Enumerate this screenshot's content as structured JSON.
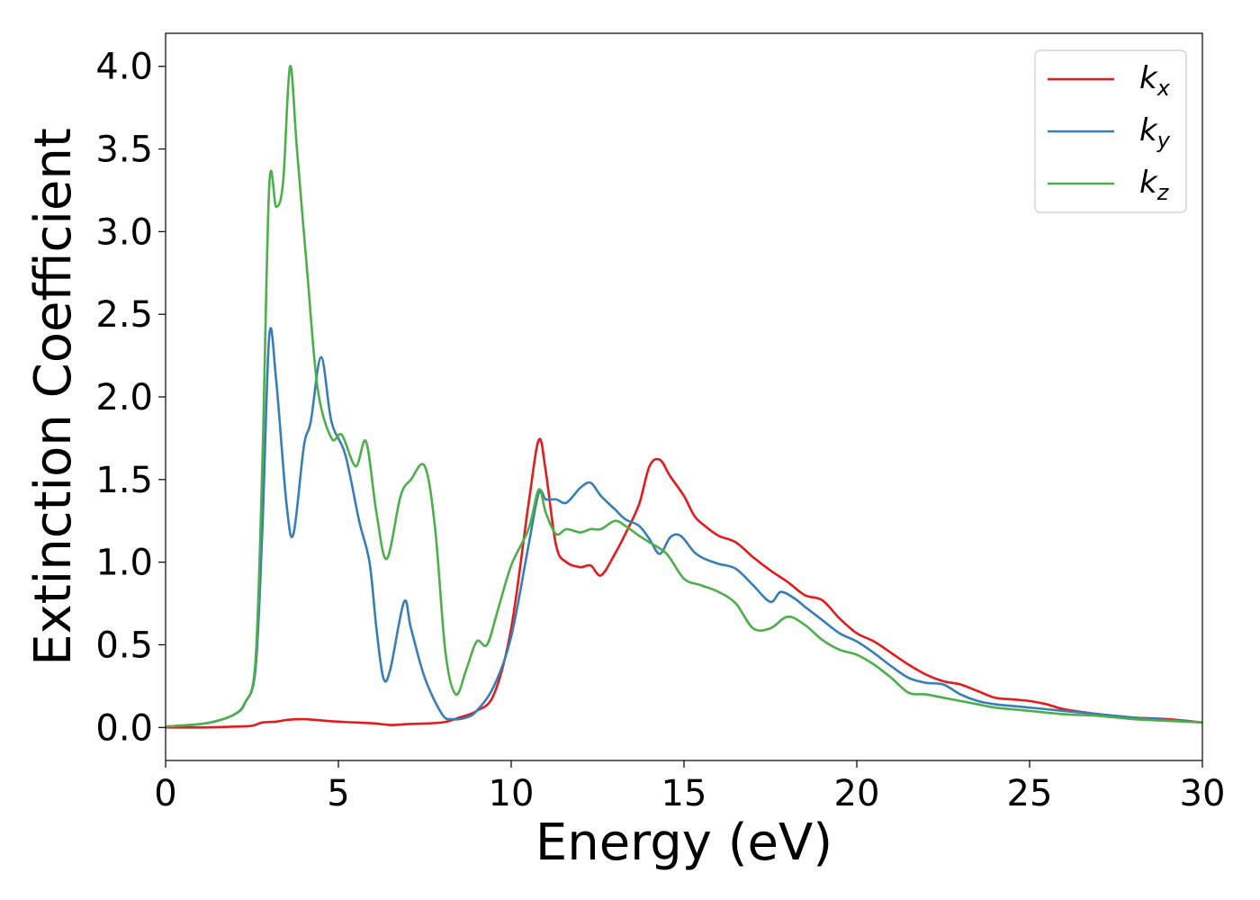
{
  "chart_data": {
    "type": "line",
    "xlabel": "Energy (eV)",
    "ylabel": "Extinction Coefficient",
    "xlim": [
      0,
      30
    ],
    "ylim": [
      -0.2,
      4.2
    ],
    "xticks": [
      0,
      5,
      10,
      15,
      20,
      25,
      30
    ],
    "yticks": [
      0.0,
      0.5,
      1.0,
      1.5,
      2.0,
      2.5,
      3.0,
      3.5,
      4.0
    ],
    "xtick_labels": [
      "0",
      "5",
      "10",
      "15",
      "20",
      "25",
      "30"
    ],
    "ytick_labels": [
      "0.0",
      "0.5",
      "1.0",
      "1.5",
      "2.0",
      "2.5",
      "3.0",
      "3.5",
      "4.0"
    ],
    "grid": false,
    "legend_position": "top-right",
    "series": [
      {
        "name": "k_x",
        "label_main": "k",
        "label_sub": "x",
        "color": "#e41a1c",
        "points": [
          [
            0,
            0
          ],
          [
            1,
            0
          ],
          [
            2,
            0.005
          ],
          [
            2.5,
            0.01
          ],
          [
            2.8,
            0.03
          ],
          [
            3.2,
            0.035
          ],
          [
            3.5,
            0.045
          ],
          [
            4,
            0.05
          ],
          [
            5,
            0.035
          ],
          [
            6,
            0.025
          ],
          [
            6.5,
            0.015
          ],
          [
            7,
            0.02
          ],
          [
            8,
            0.03
          ],
          [
            8.5,
            0.06
          ],
          [
            9,
            0.1
          ],
          [
            9.5,
            0.2
          ],
          [
            10,
            0.6
          ],
          [
            10.5,
            1.35
          ],
          [
            10.8,
            1.74
          ],
          [
            11,
            1.55
          ],
          [
            11.3,
            1.1
          ],
          [
            11.6,
            1.0
          ],
          [
            12,
            0.97
          ],
          [
            12.3,
            0.98
          ],
          [
            12.6,
            0.92
          ],
          [
            13,
            1.05
          ],
          [
            13.3,
            1.17
          ],
          [
            13.7,
            1.35
          ],
          [
            14,
            1.58
          ],
          [
            14.3,
            1.62
          ],
          [
            14.6,
            1.52
          ],
          [
            15,
            1.4
          ],
          [
            15.3,
            1.28
          ],
          [
            15.6,
            1.22
          ],
          [
            16,
            1.16
          ],
          [
            16.5,
            1.12
          ],
          [
            17,
            1.03
          ],
          [
            17.5,
            0.95
          ],
          [
            18,
            0.88
          ],
          [
            18.5,
            0.8
          ],
          [
            19,
            0.77
          ],
          [
            19.5,
            0.66
          ],
          [
            20,
            0.57
          ],
          [
            20.5,
            0.52
          ],
          [
            21,
            0.45
          ],
          [
            21.5,
            0.38
          ],
          [
            22,
            0.32
          ],
          [
            22.5,
            0.28
          ],
          [
            23,
            0.26
          ],
          [
            23.5,
            0.22
          ],
          [
            24,
            0.18
          ],
          [
            24.5,
            0.17
          ],
          [
            25,
            0.16
          ],
          [
            25.5,
            0.14
          ],
          [
            26,
            0.11
          ],
          [
            27,
            0.08
          ],
          [
            28,
            0.06
          ],
          [
            29,
            0.05
          ],
          [
            30,
            0.03
          ]
        ]
      },
      {
        "name": "k_y",
        "label_main": "k",
        "label_sub": "y",
        "color": "#377eb8",
        "points": [
          [
            0,
            0.005
          ],
          [
            1,
            0.02
          ],
          [
            1.5,
            0.04
          ],
          [
            2,
            0.08
          ],
          [
            2.3,
            0.15
          ],
          [
            2.6,
            0.35
          ],
          [
            2.8,
            1.2
          ],
          [
            3,
            2.37
          ],
          [
            3.2,
            2.1
          ],
          [
            3.5,
            1.35
          ],
          [
            3.7,
            1.17
          ],
          [
            4,
            1.7
          ],
          [
            4.2,
            1.85
          ],
          [
            4.5,
            2.24
          ],
          [
            4.8,
            1.85
          ],
          [
            5.2,
            1.65
          ],
          [
            5.6,
            1.25
          ],
          [
            5.9,
            1.0
          ],
          [
            6.1,
            0.6
          ],
          [
            6.3,
            0.3
          ],
          [
            6.5,
            0.35
          ],
          [
            6.9,
            0.76
          ],
          [
            7.1,
            0.6
          ],
          [
            7.5,
            0.3
          ],
          [
            8,
            0.08
          ],
          [
            8.3,
            0.05
          ],
          [
            8.7,
            0.06
          ],
          [
            9,
            0.1
          ],
          [
            9.5,
            0.25
          ],
          [
            10,
            0.55
          ],
          [
            10.5,
            1.1
          ],
          [
            10.8,
            1.42
          ],
          [
            11,
            1.38
          ],
          [
            11.3,
            1.38
          ],
          [
            11.6,
            1.36
          ],
          [
            12,
            1.45
          ],
          [
            12.3,
            1.48
          ],
          [
            12.6,
            1.4
          ],
          [
            13,
            1.32
          ],
          [
            13.3,
            1.26
          ],
          [
            13.7,
            1.22
          ],
          [
            14,
            1.14
          ],
          [
            14.3,
            1.05
          ],
          [
            14.6,
            1.15
          ],
          [
            14.9,
            1.16
          ],
          [
            15.3,
            1.06
          ],
          [
            15.6,
            1.02
          ],
          [
            16,
            0.99
          ],
          [
            16.5,
            0.96
          ],
          [
            17,
            0.86
          ],
          [
            17.5,
            0.76
          ],
          [
            17.8,
            0.82
          ],
          [
            18.2,
            0.78
          ],
          [
            18.5,
            0.73
          ],
          [
            19,
            0.65
          ],
          [
            19.5,
            0.57
          ],
          [
            20,
            0.52
          ],
          [
            20.5,
            0.45
          ],
          [
            21,
            0.37
          ],
          [
            21.5,
            0.3
          ],
          [
            22,
            0.27
          ],
          [
            22.5,
            0.26
          ],
          [
            23,
            0.2
          ],
          [
            23.5,
            0.16
          ],
          [
            24,
            0.14
          ],
          [
            24.5,
            0.13
          ],
          [
            25,
            0.12
          ],
          [
            26,
            0.1
          ],
          [
            27,
            0.08
          ],
          [
            28,
            0.06
          ],
          [
            29,
            0.045
          ],
          [
            30,
            0.03
          ]
        ]
      },
      {
        "name": "k_z",
        "label_main": "k",
        "label_sub": "z",
        "color": "#4daf4a",
        "points": [
          [
            0,
            0.005
          ],
          [
            1,
            0.02
          ],
          [
            1.5,
            0.04
          ],
          [
            2,
            0.08
          ],
          [
            2.3,
            0.15
          ],
          [
            2.6,
            0.4
          ],
          [
            2.8,
            1.6
          ],
          [
            3,
            3.28
          ],
          [
            3.2,
            3.15
          ],
          [
            3.4,
            3.3
          ],
          [
            3.6,
            4.0
          ],
          [
            3.8,
            3.5
          ],
          [
            4.1,
            2.75
          ],
          [
            4.4,
            2.05
          ],
          [
            4.8,
            1.75
          ],
          [
            5.1,
            1.77
          ],
          [
            5.5,
            1.58
          ],
          [
            5.8,
            1.73
          ],
          [
            6.1,
            1.3
          ],
          [
            6.4,
            1.02
          ],
          [
            6.8,
            1.4
          ],
          [
            7.1,
            1.5
          ],
          [
            7.5,
            1.58
          ],
          [
            7.8,
            1.2
          ],
          [
            8.1,
            0.45
          ],
          [
            8.4,
            0.2
          ],
          [
            8.7,
            0.35
          ],
          [
            9,
            0.52
          ],
          [
            9.3,
            0.5
          ],
          [
            9.6,
            0.7
          ],
          [
            10,
            0.98
          ],
          [
            10.5,
            1.2
          ],
          [
            10.8,
            1.44
          ],
          [
            11,
            1.3
          ],
          [
            11.3,
            1.17
          ],
          [
            11.6,
            1.2
          ],
          [
            12,
            1.18
          ],
          [
            12.3,
            1.2
          ],
          [
            12.6,
            1.2
          ],
          [
            13,
            1.25
          ],
          [
            13.3,
            1.22
          ],
          [
            13.7,
            1.16
          ],
          [
            14,
            1.12
          ],
          [
            14.5,
            1.05
          ],
          [
            15,
            0.9
          ],
          [
            15.5,
            0.86
          ],
          [
            16,
            0.82
          ],
          [
            16.5,
            0.75
          ],
          [
            17,
            0.6
          ],
          [
            17.5,
            0.6
          ],
          [
            18,
            0.67
          ],
          [
            18.5,
            0.62
          ],
          [
            19,
            0.53
          ],
          [
            19.5,
            0.47
          ],
          [
            20,
            0.44
          ],
          [
            20.5,
            0.38
          ],
          [
            21,
            0.3
          ],
          [
            21.5,
            0.21
          ],
          [
            22,
            0.2
          ],
          [
            22.5,
            0.18
          ],
          [
            23,
            0.16
          ],
          [
            23.5,
            0.14
          ],
          [
            24,
            0.12
          ],
          [
            24.5,
            0.11
          ],
          [
            25,
            0.1
          ],
          [
            26,
            0.08
          ],
          [
            27,
            0.07
          ],
          [
            28,
            0.05
          ],
          [
            29,
            0.04
          ],
          [
            30,
            0.03
          ]
        ]
      }
    ]
  }
}
